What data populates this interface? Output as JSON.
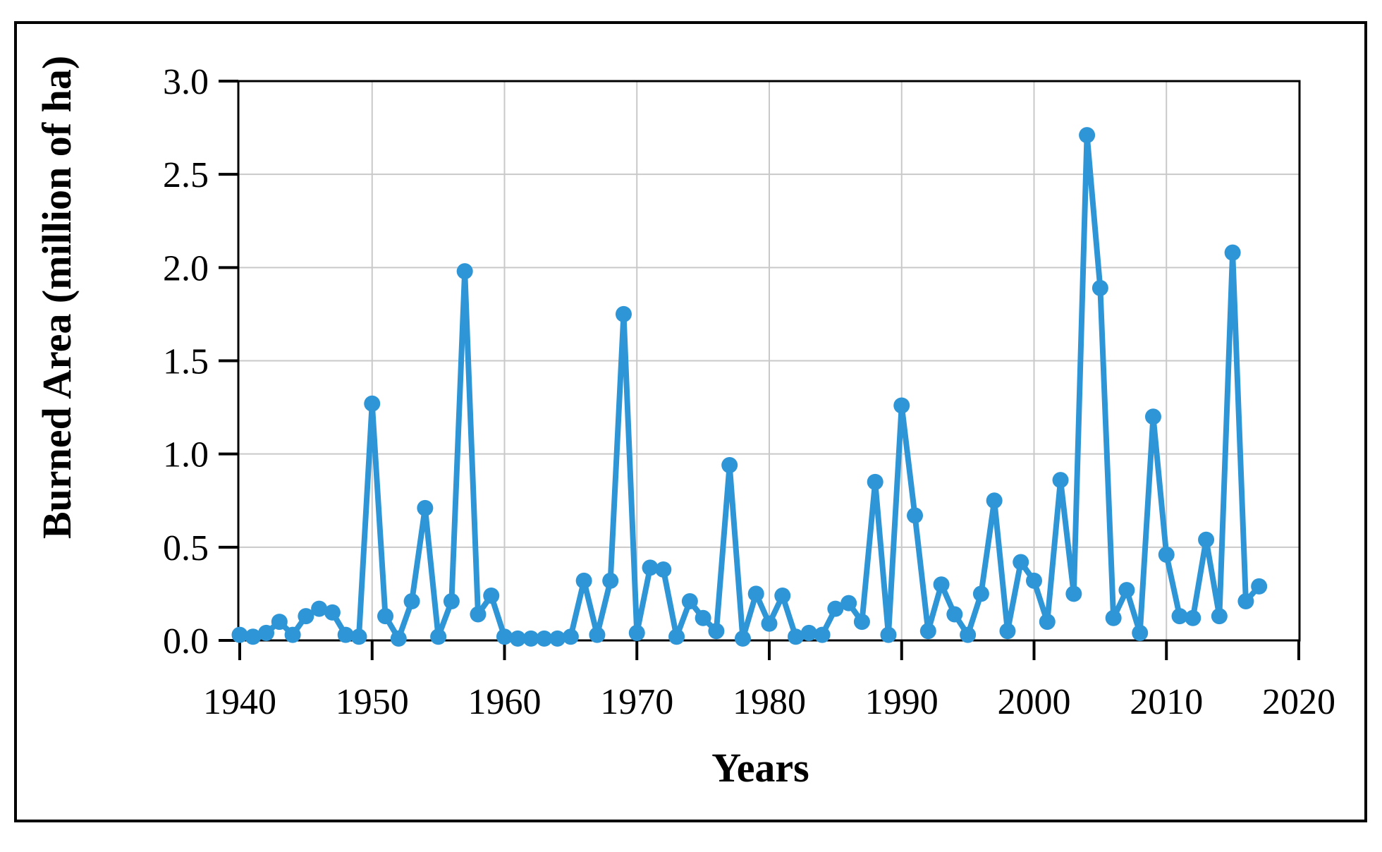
{
  "figure": {
    "background": "#ffffff",
    "border_color": "#000000"
  },
  "chart_data": {
    "type": "line",
    "title": "",
    "xlabel": "Years",
    "ylabel": "Burned Area (million of ha)",
    "legend": "none",
    "grid": true,
    "xlim": [
      1940,
      2020
    ],
    "ylim": [
      0.0,
      3.0
    ],
    "x_tick_labels": [
      "1940",
      "1950",
      "1960",
      "1970",
      "1980",
      "1990",
      "2000",
      "2010",
      "2020"
    ],
    "x_tick_values": [
      1940,
      1950,
      1960,
      1970,
      1980,
      1990,
      2000,
      2010,
      2020
    ],
    "y_tick_labels": [
      "0.0",
      "0.5",
      "1.0",
      "1.5",
      "2.0",
      "2.5",
      "3.0"
    ],
    "y_tick_values": [
      0.0,
      0.5,
      1.0,
      1.5,
      2.0,
      2.5,
      3.0
    ],
    "line_color": "#2E96D6",
    "marker_color": "#2E96D6",
    "grid_color": "#C9C9C9",
    "axis_color": "#000000",
    "series": [
      {
        "name": "Burned Area",
        "x": [
          1940,
          1941,
          1942,
          1943,
          1944,
          1945,
          1946,
          1947,
          1948,
          1949,
          1950,
          1951,
          1952,
          1953,
          1954,
          1955,
          1956,
          1957,
          1958,
          1959,
          1960,
          1961,
          1962,
          1963,
          1964,
          1965,
          1966,
          1967,
          1968,
          1969,
          1970,
          1971,
          1972,
          1973,
          1974,
          1975,
          1976,
          1977,
          1978,
          1979,
          1980,
          1981,
          1982,
          1983,
          1984,
          1985,
          1986,
          1987,
          1988,
          1989,
          1990,
          1991,
          1992,
          1993,
          1994,
          1995,
          1996,
          1997,
          1998,
          1999,
          2000,
          2001,
          2002,
          2003,
          2004,
          2005,
          2006,
          2007,
          2008,
          2009,
          2010,
          2011,
          2012,
          2013,
          2014,
          2015,
          2016,
          2017
        ],
        "values": [
          0.03,
          0.02,
          0.04,
          0.1,
          0.03,
          0.13,
          0.17,
          0.15,
          0.03,
          0.02,
          1.27,
          0.13,
          0.01,
          0.21,
          0.71,
          0.02,
          0.21,
          1.98,
          0.14,
          0.24,
          0.02,
          0.01,
          0.01,
          0.01,
          0.01,
          0.02,
          0.32,
          0.03,
          0.32,
          1.75,
          0.04,
          0.39,
          0.38,
          0.02,
          0.21,
          0.12,
          0.05,
          0.94,
          0.01,
          0.25,
          0.09,
          0.24,
          0.02,
          0.04,
          0.03,
          0.17,
          0.2,
          0.1,
          0.85,
          0.03,
          1.26,
          0.67,
          0.05,
          0.3,
          0.14,
          0.03,
          0.25,
          0.75,
          0.05,
          0.42,
          0.32,
          0.1,
          0.86,
          0.25,
          2.71,
          1.89,
          0.12,
          0.27,
          0.04,
          1.2,
          0.46,
          0.13,
          0.12,
          0.54,
          0.13,
          2.08,
          0.21,
          0.29
        ]
      }
    ]
  }
}
